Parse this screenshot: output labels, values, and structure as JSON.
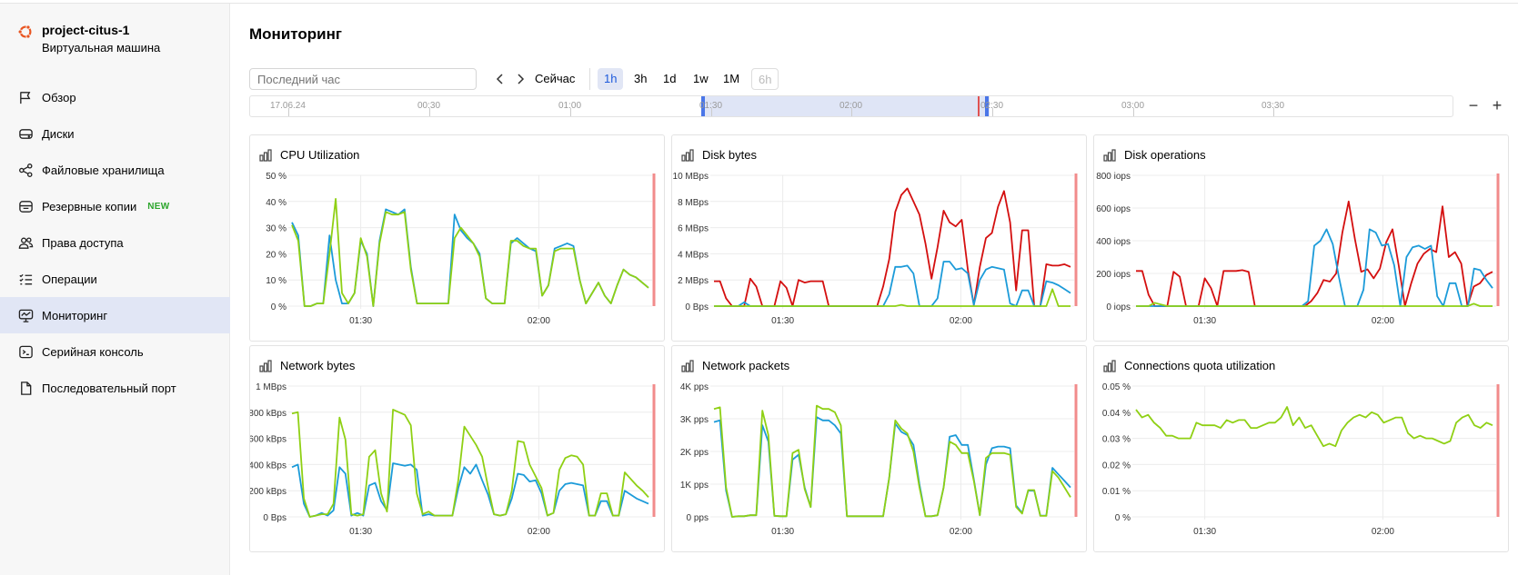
{
  "vm": {
    "name": "project-citus-1",
    "type": "Виртуальная машина"
  },
  "nav": [
    {
      "id": "overview",
      "label": "Обзор",
      "icon": "flag-icon"
    },
    {
      "id": "disks",
      "label": "Диски",
      "icon": "disk-icon"
    },
    {
      "id": "filestores",
      "label": "Файловые хранилища",
      "icon": "share-icon"
    },
    {
      "id": "backups",
      "label": "Резервные копии",
      "icon": "backup-icon",
      "badge": "NEW"
    },
    {
      "id": "access",
      "label": "Права доступа",
      "icon": "users-icon"
    },
    {
      "id": "operations",
      "label": "Операции",
      "icon": "list-icon"
    },
    {
      "id": "monitoring",
      "label": "Мониторинг",
      "icon": "monitor-icon",
      "active": true
    },
    {
      "id": "serial-console",
      "label": "Серийная консоль",
      "icon": "terminal-icon"
    },
    {
      "id": "serial-port",
      "label": "Последовательный порт",
      "icon": "file-icon"
    }
  ],
  "main": {
    "title": "Мониторинг",
    "range_placeholder": "Последний час",
    "now_label": "Сейчас",
    "ranges": [
      {
        "label": "1h",
        "active": true
      },
      {
        "label": "3h"
      },
      {
        "label": "1d"
      },
      {
        "label": "1w"
      },
      {
        "label": "1M"
      },
      {
        "label": "6h",
        "disabled": true
      }
    ],
    "timeline_labels": [
      "17.06.24",
      "00:30",
      "01:00",
      "01:30",
      "02:00",
      "02:30",
      "03:00",
      "03:30"
    ],
    "zoom_out": "−",
    "zoom_in": "+"
  },
  "colors": {
    "blue": "#1c9bd9",
    "green": "#8fd014",
    "red": "#d40f0f",
    "now_line": "#f28b8b",
    "accent": "#1e5bdc"
  },
  "chart_data": [
    {
      "id": "cpu",
      "title": "CPU Utilization",
      "type": "line",
      "yticks": [
        "50 %",
        "40 %",
        "30 %",
        "20 %",
        "10 %",
        "0 %"
      ],
      "ylim": [
        0,
        50
      ],
      "xticks": [
        "01:30",
        "02:00"
      ],
      "series": [
        {
          "color": "blue",
          "values": [
            32,
            27,
            0,
            0,
            1,
            1,
            27,
            10,
            1,
            1,
            5,
            25,
            20,
            0,
            25,
            37,
            36,
            35,
            37,
            15,
            1,
            1,
            1,
            1,
            1,
            1,
            35,
            29,
            26,
            24,
            20,
            3,
            1,
            1,
            1,
            24,
            26,
            24,
            22,
            21,
            4,
            8,
            22,
            23,
            24,
            23,
            10,
            1,
            5,
            9,
            4,
            1,
            8,
            14,
            12,
            11,
            9,
            7
          ]
        },
        {
          "color": "green",
          "values": [
            31,
            25,
            0,
            0,
            1,
            1,
            20,
            41,
            5,
            1,
            5,
            26,
            19,
            0,
            24,
            36,
            35,
            35,
            36,
            14,
            1,
            1,
            1,
            1,
            1,
            1,
            26,
            30,
            27,
            24,
            19,
            3,
            1,
            1,
            1,
            25,
            25,
            23,
            22,
            22,
            4,
            8,
            21,
            22,
            22,
            22,
            10,
            1,
            5,
            9,
            4,
            1,
            8,
            14,
            12,
            11,
            9,
            7
          ]
        }
      ]
    },
    {
      "id": "disk-bytes",
      "title": "Disk bytes",
      "type": "line",
      "yticks": [
        "10 MBps",
        "8 MBps",
        "6 MBps",
        "4 MBps",
        "2 MBps",
        "0 Bps"
      ],
      "ylim": [
        0,
        10
      ],
      "xticks": [
        "01:30",
        "02:00"
      ],
      "series": [
        {
          "color": "red",
          "values": [
            1.9,
            1.9,
            0.6,
            0,
            0,
            0,
            2.1,
            1.5,
            0,
            0,
            0,
            1.9,
            1.4,
            0,
            2.0,
            1.8,
            1.9,
            1.9,
            1.9,
            0,
            0,
            0,
            0,
            0,
            0,
            0,
            0,
            0,
            1.5,
            3.6,
            7.2,
            8.5,
            9.0,
            8.0,
            7.0,
            4.8,
            2.1,
            4.5,
            7.3,
            6.4,
            6.1,
            6.6,
            2.8,
            0.1,
            3.0,
            5.2,
            5.6,
            7.6,
            8.8,
            6.4,
            1.2,
            5.8,
            5.8,
            0,
            0,
            3.2,
            3.1,
            3.1,
            3.2,
            3.0
          ]
        },
        {
          "color": "blue",
          "values": [
            0,
            0,
            0,
            0,
            0,
            0.3,
            0,
            0,
            0,
            0,
            0,
            0,
            0,
            0,
            0,
            0,
            0,
            0,
            0,
            0,
            0,
            0,
            0,
            0,
            0,
            0,
            0,
            0,
            0,
            0.9,
            3.0,
            3.0,
            3.1,
            2.5,
            0,
            0,
            0,
            0.6,
            3.4,
            3.4,
            2.8,
            2.9,
            2.5,
            0.1,
            2.0,
            2.8,
            3.0,
            2.9,
            2.8,
            0.2,
            0,
            1.2,
            1.2,
            0,
            0,
            1.9,
            1.8,
            1.6,
            1.3,
            1.0
          ]
        },
        {
          "color": "green",
          "values": [
            0,
            0,
            0,
            0,
            0,
            0,
            0,
            0,
            0,
            0,
            0,
            0,
            0,
            0,
            0,
            0,
            0,
            0,
            0,
            0,
            0,
            0,
            0,
            0,
            0,
            0,
            0,
            0,
            0,
            0,
            0,
            0.1,
            0,
            0,
            0,
            0,
            0,
            0,
            0,
            0,
            0,
            0,
            0,
            0,
            0,
            0,
            0,
            0,
            0,
            0,
            0,
            0,
            0,
            0,
            0,
            0,
            1.3,
            0,
            0,
            0
          ]
        }
      ]
    },
    {
      "id": "disk-ops",
      "title": "Disk operations",
      "type": "line",
      "yticks": [
        "800 iops",
        "600 iops",
        "400 iops",
        "200 iops",
        "0 iops"
      ],
      "ylim": [
        0,
        800
      ],
      "xticks": [
        "01:30",
        "02:00"
      ],
      "series": [
        {
          "color": "red",
          "values": [
            215,
            215,
            70,
            0,
            0,
            0,
            210,
            180,
            0,
            0,
            0,
            170,
            110,
            0,
            215,
            215,
            215,
            220,
            210,
            0,
            0,
            0,
            0,
            0,
            0,
            0,
            0,
            0,
            30,
            80,
            160,
            150,
            200,
            450,
            640,
            410,
            210,
            225,
            170,
            230,
            390,
            470,
            250,
            0,
            140,
            260,
            320,
            350,
            330,
            610,
            300,
            330,
            260,
            0,
            120,
            140,
            190,
            210
          ]
        },
        {
          "color": "blue",
          "values": [
            0,
            0,
            0,
            0,
            0,
            0,
            0,
            0,
            0,
            0,
            0,
            0,
            0,
            0,
            0,
            0,
            0,
            0,
            0,
            0,
            0,
            0,
            0,
            0,
            0,
            0,
            0,
            0,
            30,
            370,
            400,
            470,
            380,
            180,
            0,
            0,
            0,
            100,
            470,
            450,
            370,
            380,
            250,
            0,
            300,
            360,
            370,
            350,
            370,
            60,
            0,
            140,
            140,
            0,
            0,
            230,
            220,
            160,
            110
          ]
        },
        {
          "color": "green",
          "values": [
            0,
            0,
            0,
            20,
            10,
            0,
            0,
            0,
            0,
            0,
            0,
            0,
            0,
            0,
            0,
            0,
            0,
            0,
            0,
            0,
            0,
            0,
            0,
            0,
            0,
            0,
            0,
            0,
            0,
            0,
            0,
            0,
            0,
            0,
            0,
            0,
            0,
            0,
            0,
            0,
            0,
            0,
            0,
            0,
            0,
            0,
            0,
            0,
            0,
            0,
            0,
            0,
            0,
            0,
            15,
            0,
            0,
            0
          ]
        }
      ]
    },
    {
      "id": "net-bytes",
      "title": "Network bytes",
      "type": "line",
      "yticks": [
        "1 MBps",
        "800 kBps",
        "600 kBps",
        "400 kBps",
        "200 kBps",
        "0 Bps"
      ],
      "ylim": [
        0,
        1000
      ],
      "xticks": [
        "01:30",
        "02:00"
      ],
      "series": [
        {
          "color": "blue",
          "values": [
            380,
            400,
            100,
            0,
            10,
            30,
            10,
            50,
            380,
            330,
            10,
            30,
            10,
            240,
            260,
            120,
            50,
            410,
            400,
            390,
            400,
            360,
            10,
            20,
            10,
            10,
            10,
            10,
            220,
            380,
            330,
            400,
            280,
            170,
            20,
            10,
            20,
            140,
            330,
            320,
            270,
            280,
            180,
            10,
            30,
            200,
            250,
            260,
            250,
            240,
            10,
            10,
            120,
            120,
            10,
            10,
            200,
            170,
            140,
            120,
            100
          ]
        },
        {
          "color": "green",
          "values": [
            790,
            800,
            140,
            0,
            10,
            20,
            20,
            100,
            760,
            590,
            20,
            10,
            20,
            460,
            510,
            180,
            40,
            820,
            800,
            780,
            700,
            180,
            20,
            40,
            10,
            10,
            10,
            10,
            280,
            690,
            620,
            550,
            460,
            230,
            20,
            10,
            20,
            200,
            580,
            570,
            400,
            310,
            220,
            10,
            30,
            360,
            450,
            470,
            460,
            400,
            10,
            10,
            180,
            180,
            10,
            10,
            340,
            290,
            240,
            200,
            150
          ]
        }
      ]
    },
    {
      "id": "net-packets",
      "title": "Network packets",
      "type": "line",
      "yticks": [
        "4K pps",
        "3K pps",
        "2K pps",
        "1K pps",
        "0 pps"
      ],
      "ylim": [
        0,
        4000
      ],
      "xticks": [
        "01:30",
        "02:00"
      ],
      "series": [
        {
          "color": "blue",
          "values": [
            2900,
            2950,
            800,
            0,
            20,
            20,
            50,
            50,
            2800,
            2300,
            30,
            20,
            20,
            1750,
            1900,
            900,
            300,
            3050,
            2950,
            2950,
            2800,
            2550,
            20,
            20,
            20,
            20,
            20,
            20,
            20,
            1200,
            2850,
            2600,
            2500,
            2200,
            1000,
            20,
            20,
            50,
            900,
            2450,
            2500,
            2200,
            2200,
            1150,
            50,
            1600,
            2100,
            2150,
            2150,
            2100,
            350,
            120,
            800,
            800,
            40,
            40,
            1500,
            1300,
            1100,
            900
          ]
        },
        {
          "color": "green",
          "values": [
            3300,
            3350,
            900,
            0,
            20,
            20,
            50,
            50,
            3250,
            2500,
            30,
            20,
            20,
            1950,
            2050,
            850,
            300,
            3400,
            3300,
            3300,
            3200,
            2800,
            20,
            20,
            20,
            20,
            20,
            20,
            20,
            1200,
            2950,
            2700,
            2550,
            2000,
            900,
            20,
            20,
            50,
            900,
            2300,
            2200,
            1950,
            1950,
            1100,
            50,
            1800,
            1950,
            1950,
            1950,
            1900,
            300,
            100,
            820,
            820,
            30,
            30,
            1400,
            1200,
            900,
            600
          ]
        }
      ]
    },
    {
      "id": "conn-quota",
      "title": "Connections quota utilization",
      "type": "line",
      "yticks": [
        "0.05 %",
        "0.04 %",
        "0.03 %",
        "0.02 %",
        "0.01 %",
        "0 %"
      ],
      "ylim": [
        0,
        0.05
      ],
      "xticks": [
        "01:30",
        "02:00"
      ],
      "series": [
        {
          "color": "green",
          "values": [
            0.041,
            0.038,
            0.039,
            0.036,
            0.034,
            0.031,
            0.031,
            0.03,
            0.03,
            0.03,
            0.036,
            0.035,
            0.035,
            0.035,
            0.034,
            0.037,
            0.036,
            0.037,
            0.037,
            0.034,
            0.034,
            0.035,
            0.036,
            0.036,
            0.038,
            0.042,
            0.035,
            0.038,
            0.034,
            0.035,
            0.031,
            0.027,
            0.028,
            0.027,
            0.033,
            0.036,
            0.038,
            0.039,
            0.038,
            0.04,
            0.039,
            0.036,
            0.037,
            0.038,
            0.038,
            0.032,
            0.03,
            0.031,
            0.03,
            0.03,
            0.029,
            0.028,
            0.029,
            0.036,
            0.038,
            0.039,
            0.035,
            0.034,
            0.036,
            0.035
          ]
        }
      ]
    }
  ]
}
